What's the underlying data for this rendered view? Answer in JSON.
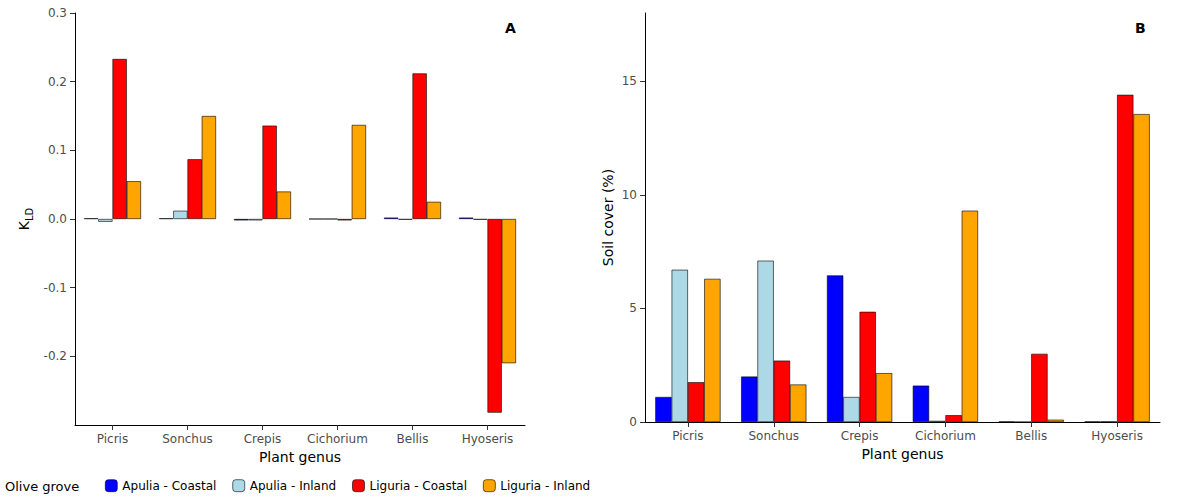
{
  "chart_data": [
    {
      "type": "bar",
      "title": "A",
      "categories": [
        "Picris",
        "Sonchus",
        "Crepis",
        "Cichorium",
        "Bellis",
        "Hyoseris"
      ],
      "series": [
        {
          "name": "Apulia - Coastal",
          "color": "#0000ff",
          "values": [
            0.001,
            0.001,
            -0.002,
            0.0,
            0.002,
            0.002
          ]
        },
        {
          "name": "Apulia - Inland",
          "color": "#add8e6",
          "values": [
            -0.004,
            0.012,
            -0.002,
            0.0,
            -0.001,
            -0.001
          ]
        },
        {
          "name": "Liguria - Coastal",
          "color": "#ff0000",
          "values": [
            0.233,
            0.087,
            0.136,
            -0.002,
            0.212,
            -0.282
          ]
        },
        {
          "name": "Liguria - Inland",
          "color": "#ffa500",
          "values": [
            0.055,
            0.15,
            0.04,
            0.137,
            0.025,
            -0.21
          ]
        }
      ],
      "x_label": "Plant genus",
      "y_label": "K",
      "y_label_subscript": "LD",
      "ylim": [
        -0.3,
        0.3
      ],
      "yticks": [
        -0.2,
        -0.1,
        {
          "value": 0,
          "label": "0.0"
        },
        0.1,
        0.2,
        0.3
      ],
      "grid": false,
      "legend": "bottom",
      "legend_title": "Olive grove"
    },
    {
      "type": "bar",
      "title": "B",
      "categories": [
        "Picris",
        "Sonchus",
        "Crepis",
        "Cichorium",
        "Bellis",
        "Hyoseris"
      ],
      "series": [
        {
          "name": "Apulia - Coastal",
          "color": "#0000ff",
          "values": [
            1.1,
            2.0,
            6.45,
            1.6,
            0.02,
            0.02
          ]
        },
        {
          "name": "Apulia - Inland",
          "color": "#add8e6",
          "values": [
            6.7,
            7.1,
            1.1,
            0.05,
            0.0,
            0.02
          ]
        },
        {
          "name": "Liguria - Coastal",
          "color": "#ff0000",
          "values": [
            1.75,
            2.7,
            4.85,
            0.3,
            3.0,
            14.4
          ]
        },
        {
          "name": "Liguria - Inland",
          "color": "#ffa500",
          "values": [
            6.3,
            1.65,
            2.15,
            9.3,
            0.1,
            13.55
          ]
        }
      ],
      "x_label": "Plant genus",
      "y_label": "Soil cover (%)",
      "ylim": [
        0,
        18
      ],
      "yticks": [
        0,
        5,
        10,
        15
      ],
      "grid": false
    }
  ]
}
